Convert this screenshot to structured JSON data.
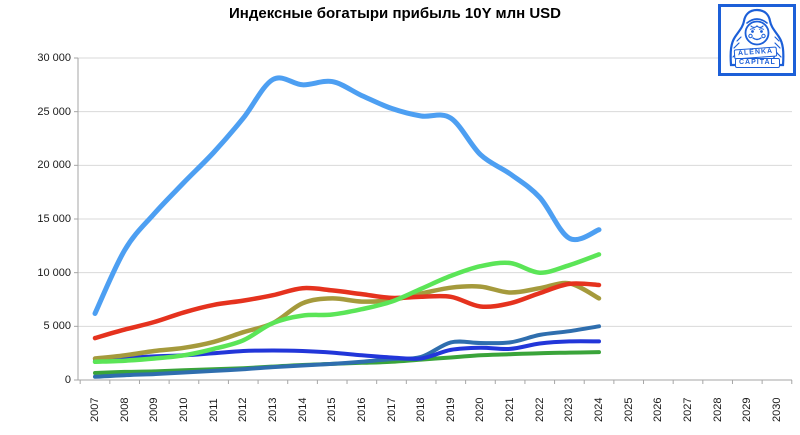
{
  "title": "Индексные богатыри прибыль 10Y млн USD",
  "logo": {
    "line1": "ALËNKA",
    "line2": "CAPITAL"
  },
  "colors": {
    "grid": "#D9D9D9",
    "axis": "#A6A6A6",
    "tick_label": "#1a1a1a",
    "logo_blue": "#1C5FD8"
  },
  "chart_data": {
    "type": "line",
    "title": "Индексные богатыри прибыль 10Y млн USD",
    "xlabel": "",
    "ylabel": "",
    "ylim": [
      0,
      30000
    ],
    "y_tick_step": 5000,
    "y_tick_labels": [
      "0",
      "5 000",
      "10 000",
      "15 000",
      "20 000",
      "25 000",
      "30 000"
    ],
    "x_tick_labels": [
      "2007",
      "2008",
      "2009",
      "2010",
      "2011",
      "2012",
      "2013",
      "2014",
      "2015",
      "2016",
      "2017",
      "2018",
      "2019",
      "2020",
      "2021",
      "2022",
      "2023",
      "2024",
      "2025",
      "2026",
      "2027",
      "2028",
      "2029",
      "2030"
    ],
    "grid": true,
    "legend_position": "none",
    "data_years": [
      2007,
      2008,
      2009,
      2010,
      2011,
      2012,
      2013,
      2014,
      2015,
      2016,
      2017,
      2018,
      2019,
      2020,
      2021,
      2022,
      2023,
      2024
    ],
    "series": [
      {
        "name": "green",
        "color": "#3AA43A",
        "width": 4,
        "values": [
          650,
          750,
          800,
          900,
          1000,
          1100,
          1250,
          1400,
          1500,
          1600,
          1700,
          1900,
          2100,
          2300,
          2400,
          2500,
          2550,
          2600
        ]
      },
      {
        "name": "steel-blue",
        "color": "#2F6EAE",
        "width": 4,
        "values": [
          300,
          450,
          550,
          700,
          850,
          1000,
          1200,
          1350,
          1500,
          1700,
          1950,
          2150,
          3500,
          3450,
          3500,
          4200,
          4550,
          5000
        ]
      },
      {
        "name": "blue",
        "color": "#2236D9",
        "width": 4,
        "values": [
          1900,
          2050,
          2200,
          2300,
          2500,
          2700,
          2750,
          2700,
          2550,
          2300,
          2100,
          2000,
          2800,
          3000,
          2900,
          3400,
          3600,
          3600
        ]
      },
      {
        "name": "olive",
        "color": "#A59A3C",
        "width": 4.5,
        "values": [
          2000,
          2300,
          2700,
          3000,
          3550,
          4450,
          5300,
          7150,
          7600,
          7300,
          7450,
          8050,
          8600,
          8700,
          8150,
          8550,
          9000,
          7600
        ]
      },
      {
        "name": "red",
        "color": "#E5321E",
        "width": 4.5,
        "values": [
          3900,
          4700,
          5400,
          6300,
          7000,
          7400,
          7900,
          8550,
          8350,
          8000,
          7650,
          7750,
          7750,
          6850,
          7150,
          8100,
          8950,
          8850
        ]
      },
      {
        "name": "light-green",
        "color": "#5BE557",
        "width": 4.5,
        "values": [
          1700,
          1800,
          2000,
          2300,
          2900,
          3700,
          5300,
          6000,
          6100,
          6600,
          7300,
          8500,
          9700,
          10600,
          10900,
          10000,
          10700,
          11700
        ]
      },
      {
        "name": "light-blue",
        "color": "#4D9FF2",
        "width": 5,
        "values": [
          6200,
          12100,
          15500,
          18400,
          21200,
          24400,
          28000,
          27500,
          27800,
          26500,
          25300,
          24600,
          24400,
          21000,
          19200,
          17000,
          13200,
          14000
        ]
      }
    ]
  }
}
